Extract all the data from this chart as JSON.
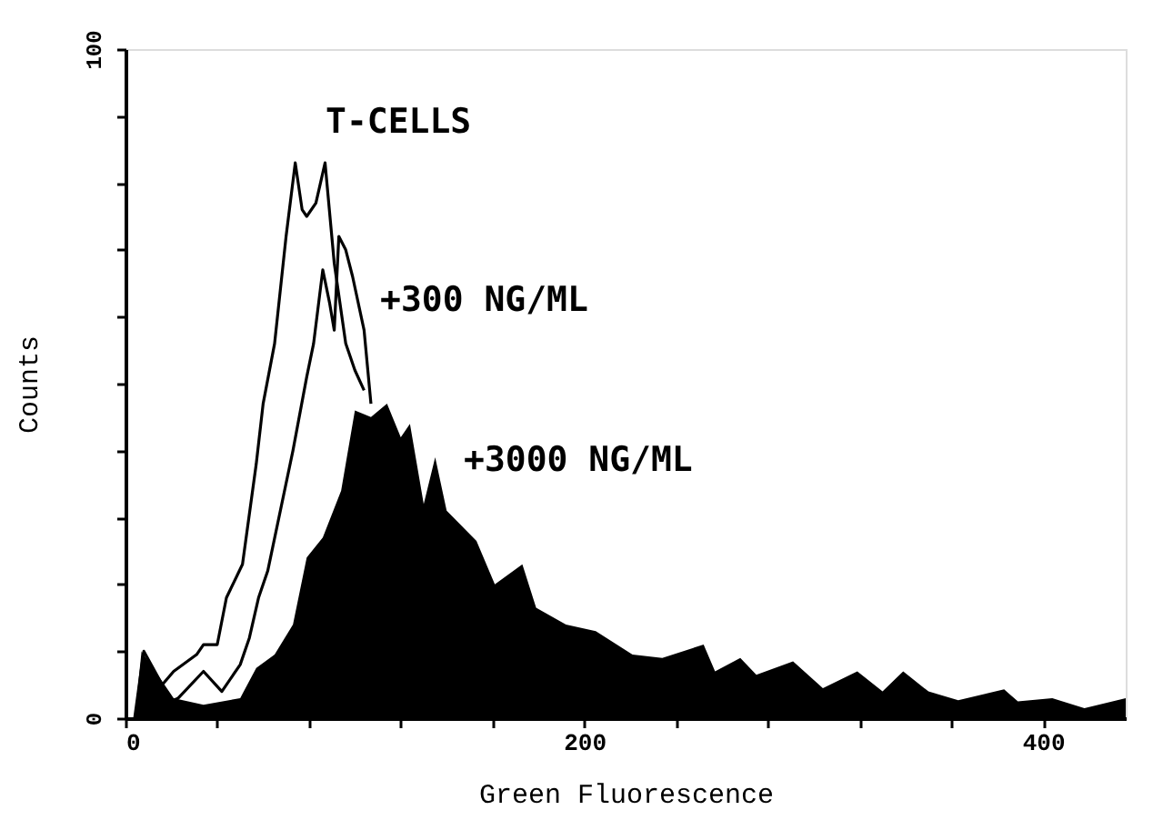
{
  "chart_data": {
    "type": "line",
    "xlabel": "Green Fluorescence",
    "ylabel": "Counts",
    "xlim": [
      0,
      436
    ],
    "ylim": [
      0,
      100
    ],
    "xticks": [
      0,
      {
        "value": 40,
        "label": null
      },
      {
        "value": 80,
        "label": null
      },
      {
        "value": 120,
        "label": null
      },
      {
        "value": 160,
        "label": null
      },
      200,
      {
        "value": 240,
        "label": null
      },
      {
        "value": 280,
        "label": null
      },
      {
        "value": 320,
        "label": null
      },
      {
        "value": 360,
        "label": null
      },
      400
    ],
    "yticks": [
      0,
      {
        "value": 10,
        "label": null
      },
      {
        "value": 20,
        "label": null
      },
      {
        "value": 30,
        "label": null
      },
      {
        "value": 40,
        "label": null
      },
      {
        "value": 50,
        "label": null
      },
      {
        "value": 60,
        "label": null
      },
      {
        "value": 70,
        "label": null
      },
      {
        "value": 80,
        "label": null
      },
      {
        "value": 90,
        "label": null
      },
      100
    ],
    "grid": false,
    "series": [
      {
        "name": "+3000 NG/ML",
        "type": "area",
        "color": "#000000",
        "x": [
          4,
          7,
          13,
          21,
          34,
          50,
          57,
          65,
          73,
          79,
          86,
          94,
          100,
          107,
          114,
          120,
          124,
          130,
          135,
          140,
          153,
          161,
          173,
          179,
          192,
          205,
          221,
          234,
          252,
          257,
          268,
          275,
          291,
          304,
          319,
          330,
          339,
          350,
          363,
          383,
          389,
          404,
          418,
          436
        ],
        "values": [
          0,
          10,
          7,
          3,
          2,
          3,
          7.5,
          9.5,
          14,
          24,
          27,
          34,
          46,
          45,
          47,
          42,
          44,
          32,
          39,
          31,
          26.5,
          20,
          23,
          16.5,
          14,
          13,
          9.5,
          9,
          11,
          7,
          9,
          6.5,
          8.5,
          4.5,
          7,
          4,
          7,
          4,
          2.7,
          4.3,
          2.5,
          3,
          1.5,
          3
        ]
      },
      {
        "name": "T-CELLS",
        "color": "#000000",
        "x": [
          4,
          8,
          16,
          21,
          31,
          34,
          40,
          44,
          51,
          57,
          60,
          65,
          70,
          74,
          77,
          79,
          83,
          87,
          91,
          96,
          100,
          104
        ],
        "values": [
          0,
          10,
          5,
          7,
          9.5,
          11,
          11,
          18,
          23,
          38,
          47,
          56,
          72,
          83,
          76,
          75,
          77,
          83,
          68,
          56,
          52,
          49
        ]
      },
      {
        "name": "+300 NG/ML",
        "color": "#000000",
        "x": [
          4,
          23,
          34,
          42,
          50,
          54,
          58,
          62,
          73,
          79,
          82,
          86,
          89,
          91,
          93,
          96,
          99,
          104,
          107
        ],
        "values": [
          0,
          3,
          7,
          4,
          8,
          12,
          18,
          22,
          40,
          51,
          56,
          67,
          62,
          58,
          72,
          70,
          66,
          58,
          47
        ]
      }
    ]
  }
}
